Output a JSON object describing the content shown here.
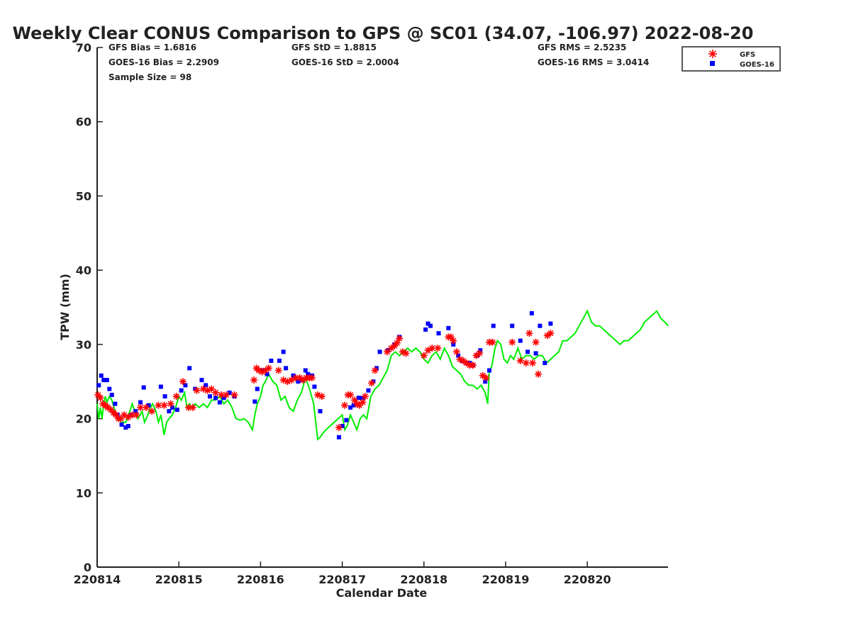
{
  "chart_data": {
    "type": "scatter",
    "title": "Weekly Clear CONUS Comparison to GPS @ SC01 (34.07, -106.97) 2022-08-20",
    "xlabel": "Calendar Date",
    "ylabel": "TPW (mm)",
    "ylim": [
      0,
      70
    ],
    "xlim": [
      "220814",
      "220821"
    ],
    "y_ticks": [
      0,
      10,
      20,
      30,
      40,
      50,
      60,
      70
    ],
    "x_ticks": [
      "220814",
      "220815",
      "220816",
      "220817",
      "220818",
      "220819",
      "220820"
    ],
    "grid": false,
    "legend_position": "top-right",
    "stats": {
      "gfs_bias": "GFS Bias = 1.6816",
      "goes_bias": "GOES-16 Bias = 2.2909",
      "sample_size": "Sample Size = 98",
      "gfs_std": "GFS StD = 1.8815",
      "goes_std": "GOES-16 StD = 2.0004",
      "gfs_rms": "GFS RMS = 2.5235",
      "goes_rms": "GOES-16 RMS = 3.0414"
    },
    "series": [
      {
        "name": "GFS",
        "marker": "asterisk",
        "color": "#ff0000",
        "x": [
          0.01,
          0.04,
          0.07,
          0.1,
          0.13,
          0.17,
          0.2,
          0.23,
          0.26,
          0.29,
          0.33,
          0.38,
          0.43,
          0.48,
          0.53,
          0.6,
          0.67,
          0.75,
          0.82,
          0.9,
          0.97,
          1.05,
          1.12,
          1.17,
          1.22,
          1.3,
          1.35,
          1.4,
          1.45,
          1.52,
          1.58,
          1.68,
          1.92,
          1.95,
          1.98,
          2.02,
          2.06,
          2.1,
          2.22,
          2.28,
          2.33,
          2.38,
          2.43,
          2.48,
          2.52,
          2.56,
          2.6,
          2.63,
          2.7,
          2.75,
          2.96,
          3.03,
          3.07,
          3.1,
          3.15,
          3.18,
          3.21,
          3.25,
          3.28,
          3.36,
          3.4,
          3.55,
          3.6,
          3.64,
          3.67,
          3.7,
          3.74,
          3.78,
          4.0,
          4.05,
          4.1,
          4.17,
          4.3,
          4.33,
          4.36,
          4.4,
          4.44,
          4.48,
          4.52,
          4.56,
          4.6,
          4.64,
          4.68,
          4.72,
          4.76,
          4.8,
          4.84,
          5.08,
          5.18,
          5.25,
          5.29,
          5.33,
          5.37,
          5.4,
          5.51,
          5.55
        ],
        "y": [
          23.2,
          22.8,
          22.0,
          21.8,
          21.5,
          21.2,
          20.8,
          20.5,
          20.0,
          20.0,
          20.5,
          20.2,
          20.5,
          20.5,
          21.5,
          21.5,
          21.0,
          21.8,
          21.8,
          22.0,
          23.0,
          25.0,
          21.5,
          21.5,
          23.8,
          24.0,
          23.8,
          24.0,
          23.5,
          23.2,
          23.2,
          23.2,
          25.2,
          26.8,
          26.5,
          26.3,
          26.5,
          26.8,
          26.5,
          25.2,
          25.0,
          25.2,
          25.5,
          25.5,
          25.2,
          25.5,
          25.5,
          25.5,
          23.2,
          23.0,
          18.8,
          21.8,
          23.2,
          23.2,
          22.5,
          22.0,
          21.8,
          22.2,
          23.0,
          24.8,
          26.5,
          29.0,
          29.5,
          29.8,
          30.2,
          30.8,
          29.0,
          28.8,
          28.5,
          29.2,
          29.5,
          29.5,
          31.0,
          31.0,
          30.5,
          29.0,
          28.0,
          27.8,
          27.5,
          27.2,
          27.2,
          28.5,
          28.8,
          25.8,
          25.5,
          30.3,
          30.3,
          30.3,
          27.8,
          27.5,
          31.5,
          27.5,
          30.3,
          26.0,
          31.2,
          31.5
        ]
      },
      {
        "name": "GOES-16",
        "marker": "square",
        "color": "#0000ff",
        "x": [
          0.02,
          0.05,
          0.08,
          0.12,
          0.15,
          0.18,
          0.22,
          0.25,
          0.3,
          0.35,
          0.38,
          0.42,
          0.47,
          0.53,
          0.57,
          0.63,
          0.78,
          0.83,
          0.88,
          0.92,
          0.98,
          1.03,
          1.08,
          1.13,
          1.2,
          1.28,
          1.33,
          1.38,
          1.45,
          1.5,
          1.55,
          1.62,
          1.68,
          1.93,
          1.96,
          2.03,
          2.08,
          2.13,
          2.23,
          2.28,
          2.31,
          2.4,
          2.46,
          2.51,
          2.55,
          2.58,
          2.63,
          2.66,
          2.73,
          2.96,
          3.0,
          3.05,
          3.1,
          3.14,
          3.2,
          3.25,
          3.32,
          3.38,
          3.42,
          3.46,
          3.56,
          3.64,
          3.7,
          4.02,
          4.05,
          4.08,
          4.18,
          4.3,
          4.36,
          4.42,
          4.47,
          4.52,
          4.56,
          4.6,
          4.65,
          4.69,
          4.75,
          4.8,
          4.85,
          5.08,
          5.18,
          5.27,
          5.32,
          5.37,
          5.42,
          5.48,
          5.55
        ],
        "y": [
          24.5,
          25.8,
          25.2,
          25.2,
          24.0,
          23.2,
          22.0,
          20.5,
          19.2,
          18.8,
          19.0,
          20.5,
          21.0,
          22.2,
          24.2,
          21.8,
          24.3,
          23.0,
          21.0,
          21.5,
          21.2,
          23.8,
          24.5,
          26.8,
          24.0,
          25.2,
          24.5,
          23.0,
          22.8,
          22.2,
          22.8,
          23.5,
          23.0,
          22.3,
          24.0,
          26.5,
          26.0,
          27.8,
          27.8,
          29.0,
          26.8,
          25.8,
          25.0,
          25.2,
          26.5,
          26.0,
          25.8,
          24.3,
          21.0,
          17.5,
          19.0,
          19.8,
          21.5,
          21.8,
          22.8,
          22.8,
          23.8,
          25.0,
          26.8,
          29.0,
          29.2,
          30.0,
          31.0,
          32.0,
          32.8,
          32.5,
          31.5,
          32.2,
          30.0,
          28.5,
          27.8,
          27.5,
          27.5,
          27.2,
          28.5,
          29.2,
          25.0,
          26.5,
          32.5,
          32.5,
          30.5,
          29.0,
          34.2,
          28.8,
          32.5,
          27.5,
          32.8
        ]
      },
      {
        "name": "",
        "marker": "line",
        "color": "#00ee00",
        "x": [
          0.0,
          0.02,
          0.04,
          0.06,
          0.08,
          0.1,
          0.12,
          0.15,
          0.18,
          0.22,
          0.25,
          0.3,
          0.35,
          0.4,
          0.43,
          0.46,
          0.5,
          0.55,
          0.58,
          0.62,
          0.65,
          0.68,
          0.72,
          0.75,
          0.78,
          0.82,
          0.85,
          0.88,
          0.92,
          0.96,
          1.0,
          1.03,
          1.07,
          1.1,
          1.13,
          1.16,
          1.2,
          1.25,
          1.3,
          1.35,
          1.4,
          1.45,
          1.5,
          1.55,
          1.6,
          1.65,
          1.7,
          1.75,
          1.8,
          1.85,
          1.9,
          1.93,
          1.96,
          2.0,
          2.03,
          2.06,
          2.1,
          2.15,
          2.2,
          2.25,
          2.3,
          2.35,
          2.4,
          2.45,
          2.5,
          2.55,
          2.6,
          2.65,
          2.7,
          2.73,
          2.76,
          2.8,
          2.85,
          2.9,
          2.95,
          3.0,
          3.03,
          3.06,
          3.1,
          3.14,
          3.18,
          3.22,
          3.26,
          3.3,
          3.35,
          3.4,
          3.45,
          3.5,
          3.55,
          3.6,
          3.65,
          3.7,
          3.75,
          3.8,
          3.85,
          3.9,
          3.95,
          4.0,
          4.05,
          4.1,
          4.15,
          4.2,
          4.25,
          4.3,
          4.35,
          4.4,
          4.45,
          4.5,
          4.55,
          4.6,
          4.65,
          4.7,
          4.75,
          4.78,
          4.8,
          4.83,
          4.87,
          4.9,
          4.94,
          4.98,
          5.02,
          5.06,
          5.1,
          5.15,
          5.2,
          5.25,
          5.3,
          5.35,
          5.4,
          5.45,
          5.5,
          5.55,
          5.6,
          5.65,
          5.7,
          5.75,
          5.8,
          5.85,
          5.9,
          5.95,
          6.0,
          6.05,
          6.1,
          6.15,
          6.2,
          6.25,
          6.3,
          6.35,
          6.4,
          6.45,
          6.5,
          6.55,
          6.6,
          6.65,
          6.7,
          6.75,
          6.8,
          6.85,
          6.9,
          6.95,
          6.99
        ],
        "y": [
          22.0,
          20.0,
          21.5,
          20.0,
          22.0,
          23.0,
          22.2,
          23.0,
          22.5,
          21.0,
          20.0,
          19.5,
          19.5,
          21.0,
          22.0,
          21.0,
          20.0,
          21.0,
          19.5,
          20.5,
          21.5,
          22.0,
          21.0,
          19.5,
          20.5,
          17.8,
          19.5,
          20.0,
          20.5,
          21.5,
          23.0,
          22.5,
          23.5,
          21.5,
          22.0,
          21.5,
          22.0,
          21.5,
          22.0,
          21.5,
          22.5,
          22.5,
          23.0,
          22.0,
          22.5,
          21.5,
          20.0,
          19.8,
          20.0,
          19.5,
          18.5,
          20.5,
          22.0,
          23.0,
          24.5,
          25.0,
          26.0,
          25.0,
          24.5,
          22.5,
          23.0,
          21.5,
          21.0,
          22.5,
          23.5,
          25.5,
          24.0,
          22.0,
          17.2,
          17.5,
          18.0,
          18.5,
          19.0,
          19.5,
          20.0,
          20.5,
          18.5,
          19.0,
          20.5,
          19.5,
          18.5,
          20.0,
          20.5,
          20.0,
          23.0,
          24.0,
          24.5,
          25.5,
          26.5,
          28.5,
          29.0,
          28.5,
          29.0,
          29.5,
          29.0,
          29.5,
          29.0,
          28.0,
          27.5,
          28.5,
          29.0,
          28.0,
          29.5,
          28.5,
          27.0,
          26.5,
          26.0,
          25.0,
          24.5,
          24.5,
          24.0,
          24.5,
          23.5,
          22.0,
          26.5,
          27.0,
          29.5,
          30.5,
          30.0,
          28.0,
          27.5,
          28.5,
          28.0,
          29.5,
          28.0,
          28.5,
          28.5,
          28.0,
          28.5,
          28.5,
          27.5,
          28.0,
          28.5,
          29.0,
          30.5,
          30.5,
          31.0,
          31.5,
          32.5,
          33.5,
          34.5,
          33.0,
          32.5,
          32.5,
          32.0,
          31.5,
          31.0,
          30.5,
          30.0,
          30.5,
          30.5,
          31.0,
          31.5,
          32.0,
          33.0,
          33.5,
          34.0,
          34.5,
          33.5,
          33.0,
          32.5
        ]
      }
    ]
  }
}
